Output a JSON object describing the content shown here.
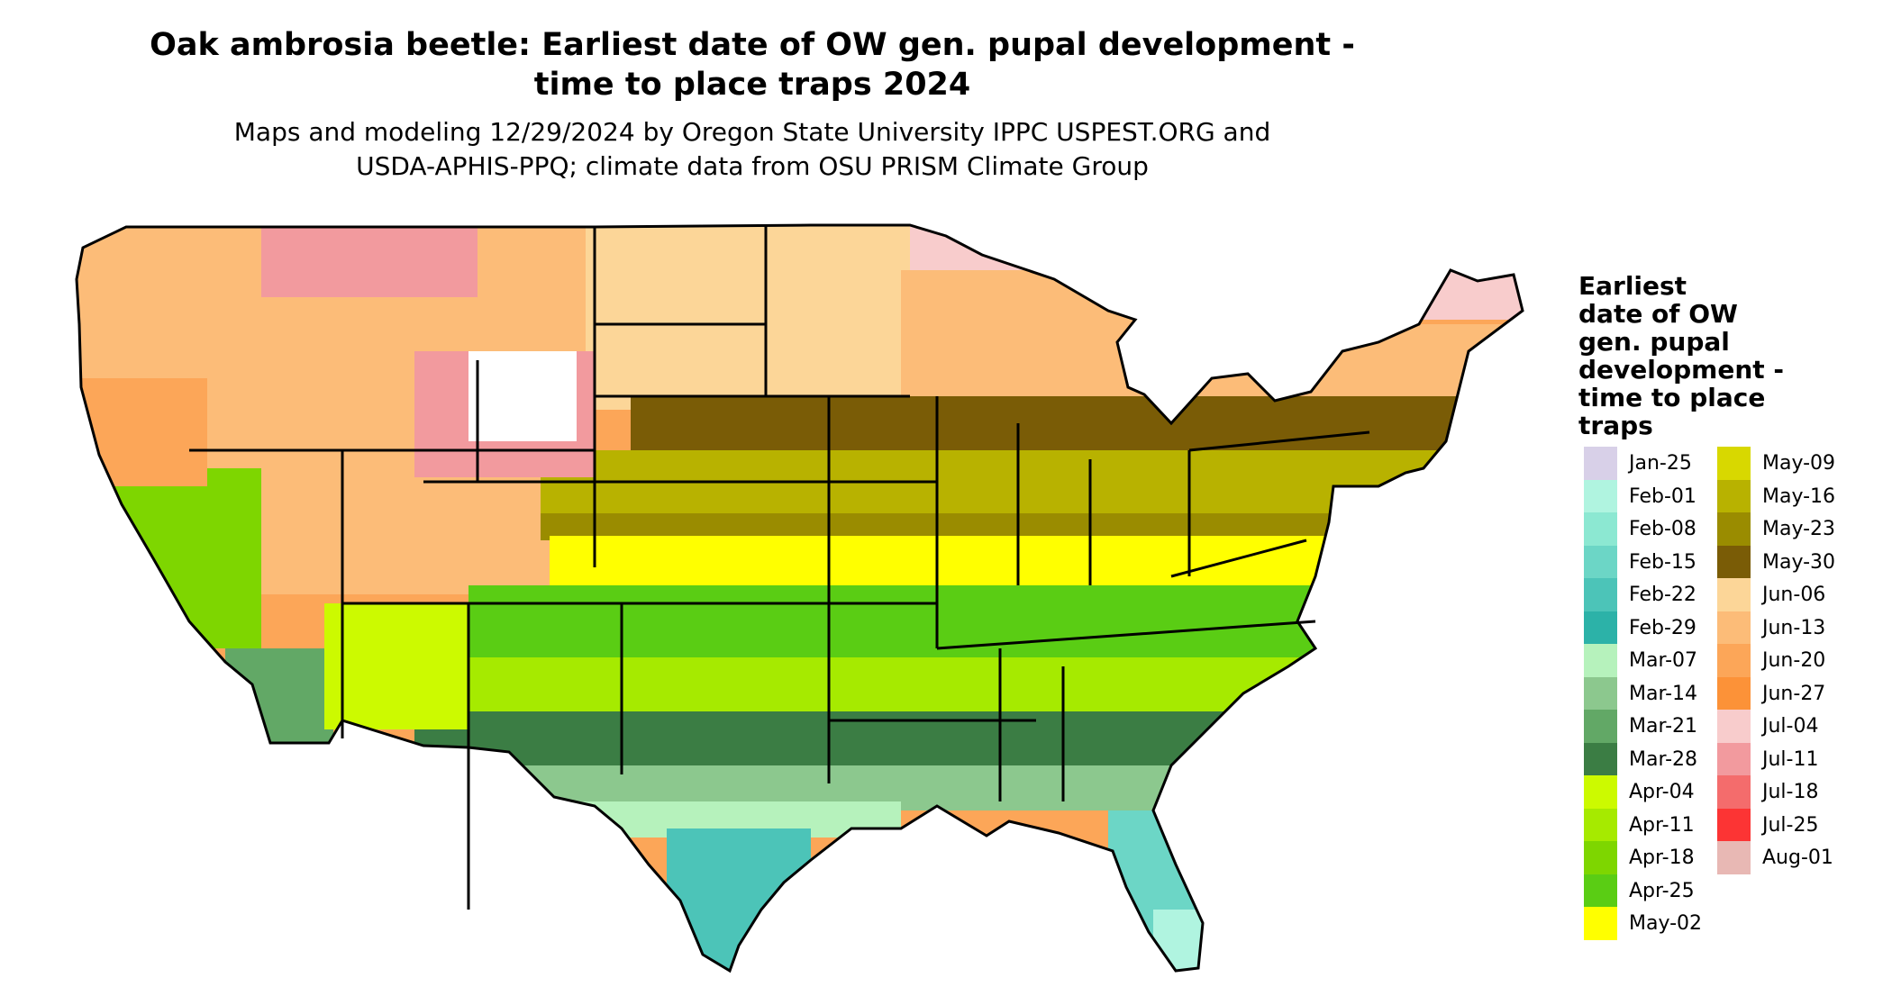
{
  "title_line1": "Oak ambrosia beetle: Earliest date of OW gen. pupal development -",
  "title_line2": "time to place traps 2024",
  "subtitle_line1": "Maps and modeling 12/29/2024 by Oregon State University IPPC USPEST.ORG and",
  "subtitle_line2": "USDA-APHIS-PPQ; climate data from OSU PRISM Climate Group",
  "legend": {
    "title": [
      "Earliest",
      "date of OW",
      "gen. pupal",
      "development -",
      "time to place",
      "traps"
    ],
    "items": [
      {
        "label": "Jan-25",
        "color": "#d8d0e8"
      },
      {
        "label": "Feb-01",
        "color": "#b0f4e0"
      },
      {
        "label": "Feb-08",
        "color": "#8ce8d2"
      },
      {
        "label": "Feb-15",
        "color": "#6cd6c6"
      },
      {
        "label": "Feb-22",
        "color": "#4cc4b8"
      },
      {
        "label": "Feb-29",
        "color": "#2cb2a8"
      },
      {
        "label": "Mar-07",
        "color": "#b6f2bc"
      },
      {
        "label": "Mar-14",
        "color": "#8cc88e"
      },
      {
        "label": "Mar-21",
        "color": "#62a866"
      },
      {
        "label": "Mar-28",
        "color": "#3b7d44"
      },
      {
        "label": "Apr-04",
        "color": "#ccfa00"
      },
      {
        "label": "Apr-11",
        "color": "#a6ea00"
      },
      {
        "label": "Apr-18",
        "color": "#7ed600"
      },
      {
        "label": "Apr-25",
        "color": "#5acd14"
      },
      {
        "label": "May-02",
        "color": "#ffff00"
      },
      {
        "label": "May-09",
        "color": "#d8d800"
      },
      {
        "label": "May-16",
        "color": "#b8b200"
      },
      {
        "label": "May-23",
        "color": "#9a8c00"
      },
      {
        "label": "May-30",
        "color": "#7a5c06"
      },
      {
        "label": "Jun-06",
        "color": "#fcd698"
      },
      {
        "label": "Jun-13",
        "color": "#fcbc78"
      },
      {
        "label": "Jun-20",
        "color": "#fca658"
      },
      {
        "label": "Jun-27",
        "color": "#fc9238"
      },
      {
        "label": "Jul-04",
        "color": "#f8cccc"
      },
      {
        "label": "Jul-11",
        "color": "#f29a9e"
      },
      {
        "label": "Jul-18",
        "color": "#f46c6c"
      },
      {
        "label": "Jul-25",
        "color": "#fc3434"
      },
      {
        "label": "Aug-01",
        "color": "#e8b8b4"
      }
    ]
  }
}
